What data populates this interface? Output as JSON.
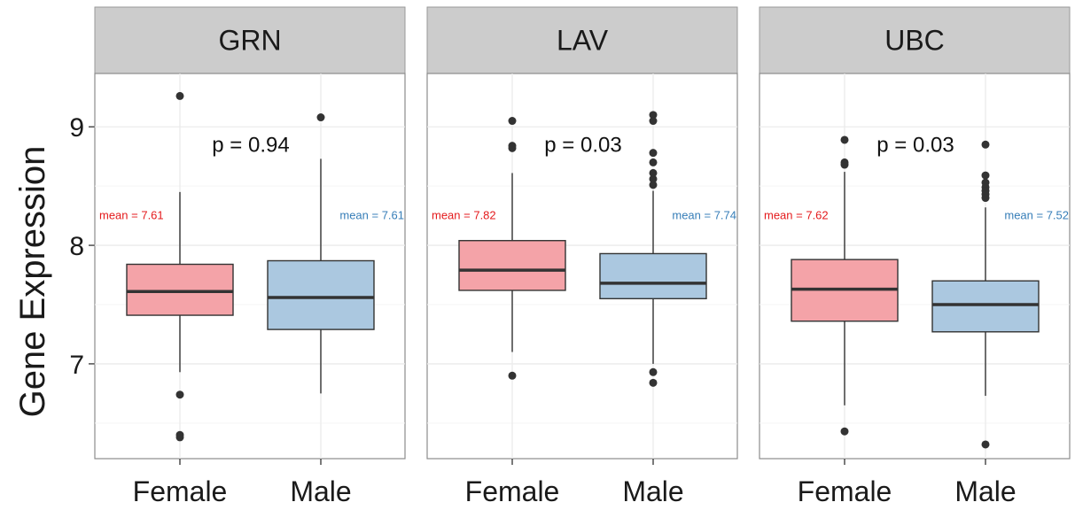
{
  "chart_data": {
    "type": "boxplot",
    "ylabel": "Gene Expression",
    "ylim": [
      6.2,
      9.45
    ],
    "yticks": [
      7,
      8,
      9
    ],
    "grid": true,
    "colors": {
      "Female": "#f4a3a8",
      "Male": "#abc8e0",
      "mean_Female": "#e41a1c",
      "mean_Male": "#377eb8"
    },
    "panels": [
      {
        "title": "GRN",
        "p_label": "p = 0.94",
        "p_y": 8.85,
        "groups": [
          {
            "name": "Female",
            "mean_label": "mean = 7.61",
            "low": 6.93,
            "q1": 7.41,
            "median": 7.61,
            "q3": 7.84,
            "high": 8.45,
            "outliers": [
              9.26,
              6.74,
              6.4,
              6.38
            ]
          },
          {
            "name": "Male",
            "mean_label": "mean = 7.61",
            "low": 6.75,
            "q1": 7.29,
            "median": 7.56,
            "q3": 7.87,
            "high": 8.73,
            "outliers": [
              9.08
            ]
          }
        ]
      },
      {
        "title": "LAV",
        "p_label": "p = 0.03",
        "p_y": 8.85,
        "groups": [
          {
            "name": "Female",
            "mean_label": "mean = 7.82",
            "low": 7.1,
            "q1": 7.62,
            "median": 7.79,
            "q3": 8.04,
            "high": 8.61,
            "outliers": [
              9.05,
              8.84,
              8.82,
              6.9
            ]
          },
          {
            "name": "Male",
            "mean_label": "mean = 7.74",
            "low": 7.0,
            "q1": 7.55,
            "median": 7.68,
            "q3": 7.93,
            "high": 8.46,
            "outliers": [
              9.1,
              9.05,
              8.78,
              8.7,
              8.61,
              8.56,
              8.51,
              6.93,
              6.84
            ]
          }
        ]
      },
      {
        "title": "UBC",
        "p_label": "p = 0.03",
        "p_y": 8.85,
        "groups": [
          {
            "name": "Female",
            "mean_label": "mean = 7.62",
            "low": 6.65,
            "q1": 7.36,
            "median": 7.63,
            "q3": 7.88,
            "high": 8.62,
            "outliers": [
              8.89,
              8.7,
              8.68,
              6.43
            ]
          },
          {
            "name": "Male",
            "mean_label": "mean = 7.52",
            "low": 6.73,
            "q1": 7.27,
            "median": 7.5,
            "q3": 7.7,
            "high": 8.32,
            "outliers": [
              8.85,
              8.59,
              8.53,
              8.49,
              8.46,
              8.43,
              8.4,
              6.32
            ]
          }
        ]
      }
    ]
  }
}
